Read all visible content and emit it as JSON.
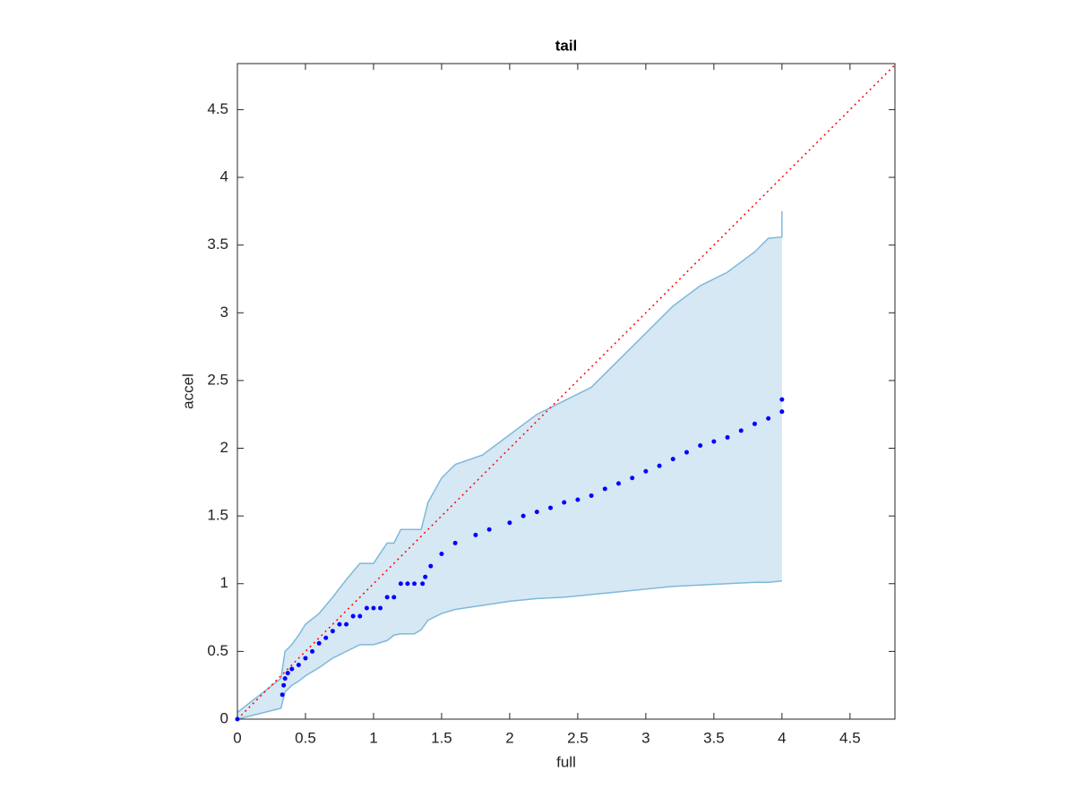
{
  "chart_data": {
    "type": "scatter",
    "title": "tail",
    "x_label": "full",
    "y_label": "accel",
    "xlim": [
      0,
      4.83
    ],
    "ylim": [
      0,
      4.84
    ],
    "xticks": [
      0,
      0.5,
      1,
      1.5,
      2,
      2.5,
      3,
      3.5,
      4,
      4.5
    ],
    "yticks": [
      0,
      0.5,
      1,
      1.5,
      2,
      2.5,
      3,
      3.5,
      4,
      4.5
    ],
    "series": [
      {
        "color": "#0000ff",
        "x": [
          0,
          0.33,
          0.34,
          0.35,
          0.37,
          0.4,
          0.45,
          0.5,
          0.55,
          0.6,
          0.65,
          0.7,
          0.75,
          0.8,
          0.85,
          0.9,
          0.95,
          1.0,
          1.05,
          1.1,
          1.15,
          1.2,
          1.25,
          1.3,
          1.36,
          1.38,
          1.42,
          1.5,
          1.6,
          1.75,
          1.85,
          2.0,
          2.1,
          2.2,
          2.3,
          2.4,
          2.5,
          2.6,
          2.7,
          2.8,
          2.9,
          3.0,
          3.1,
          3.2,
          3.3,
          3.4,
          3.5,
          3.6,
          3.7,
          3.8,
          3.9,
          4.0,
          4.0
        ],
        "values": [
          0,
          0.18,
          0.25,
          0.3,
          0.34,
          0.37,
          0.4,
          0.45,
          0.5,
          0.56,
          0.6,
          0.65,
          0.7,
          0.7,
          0.76,
          0.76,
          0.82,
          0.82,
          0.82,
          0.9,
          0.9,
          1.0,
          1.0,
          1.0,
          1.0,
          1.05,
          1.13,
          1.22,
          1.3,
          1.36,
          1.4,
          1.45,
          1.5,
          1.53,
          1.56,
          1.6,
          1.62,
          1.65,
          1.7,
          1.74,
          1.78,
          1.83,
          1.87,
          1.92,
          1.97,
          2.02,
          2.05,
          2.08,
          2.13,
          2.18,
          2.22,
          2.27,
          2.36
        ]
      }
    ],
    "band": {
      "color": "#7fb8d9",
      "fill": "#d6e8f4",
      "x": [
        0,
        0.32,
        0.35,
        0.4,
        0.45,
        0.5,
        0.6,
        0.7,
        0.8,
        0.9,
        1.0,
        1.1,
        1.15,
        1.2,
        1.3,
        1.35,
        1.4,
        1.5,
        1.6,
        1.8,
        2.0,
        2.2,
        2.4,
        2.6,
        2.8,
        3.0,
        3.2,
        3.4,
        3.6,
        3.8,
        3.9,
        4.0,
        4.0
      ],
      "upper": [
        0.05,
        0.3,
        0.5,
        0.55,
        0.62,
        0.7,
        0.78,
        0.9,
        1.03,
        1.15,
        1.15,
        1.3,
        1.3,
        1.4,
        1.4,
        1.4,
        1.6,
        1.78,
        1.88,
        1.95,
        2.1,
        2.25,
        2.35,
        2.45,
        2.65,
        2.85,
        3.05,
        3.2,
        3.3,
        3.45,
        3.55,
        3.56,
        3.75
      ],
      "lower": [
        0,
        0.08,
        0.2,
        0.25,
        0.28,
        0.32,
        0.38,
        0.45,
        0.5,
        0.55,
        0.55,
        0.58,
        0.62,
        0.63,
        0.63,
        0.66,
        0.73,
        0.78,
        0.81,
        0.84,
        0.87,
        0.89,
        0.9,
        0.92,
        0.94,
        0.96,
        0.98,
        0.99,
        1.0,
        1.01,
        1.01,
        1.02,
        1.02
      ]
    },
    "ref_line": {
      "color": "#ff0000",
      "x": [
        0,
        4.83
      ],
      "y": [
        0,
        4.83
      ]
    }
  }
}
